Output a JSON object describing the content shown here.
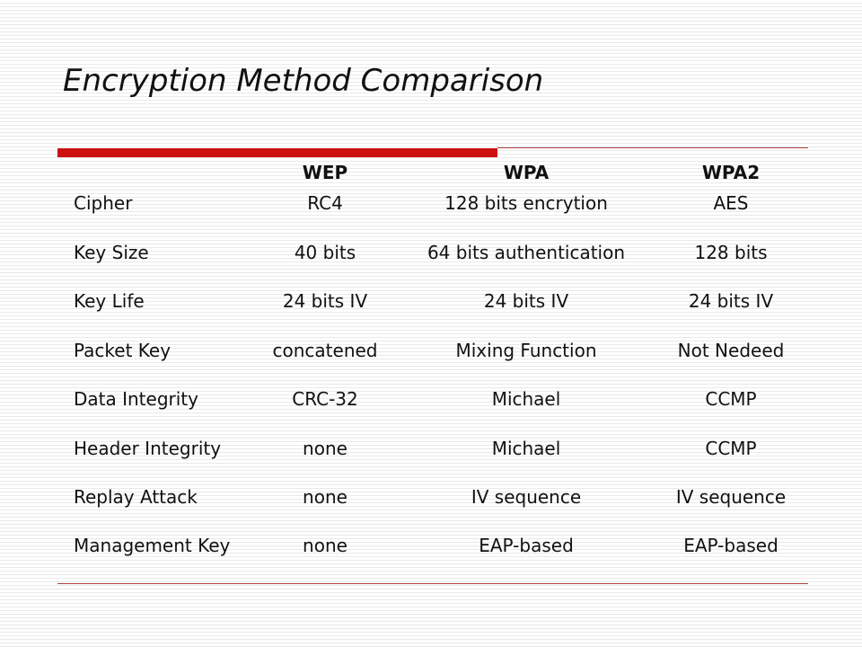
{
  "title": "Encryption Method Comparison",
  "colors": {
    "accent": "#cc1111",
    "rule": "#b04040"
  },
  "table": {
    "headers": [
      "WEP",
      "WPA",
      "WPA2"
    ],
    "rows": [
      {
        "label": "Cipher",
        "values": [
          "RC4",
          "128 bits encrytion",
          "AES"
        ]
      },
      {
        "label": "Key Size",
        "values": [
          "40 bits",
          "64 bits authentication",
          "128 bits"
        ]
      },
      {
        "label": "Key Life",
        "values": [
          "24 bits IV",
          "24 bits IV",
          "24 bits IV"
        ]
      },
      {
        "label": "Packet Key",
        "values": [
          "concatened",
          "Mixing Function",
          "Not Nedeed"
        ]
      },
      {
        "label": "Data Integrity",
        "values": [
          "CRC-32",
          "Michael",
          "CCMP"
        ]
      },
      {
        "label": "Header Integrity",
        "values": [
          "none",
          "Michael",
          "CCMP"
        ]
      },
      {
        "label": "Replay Attack",
        "values": [
          "none",
          "IV sequence",
          "IV sequence"
        ]
      },
      {
        "label": "Management Key",
        "values": [
          "none",
          "EAP-based",
          "EAP-based"
        ]
      }
    ]
  }
}
